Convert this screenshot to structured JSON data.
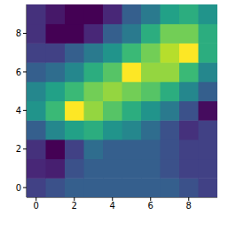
{
  "chart_data": {
    "type": "heatmap",
    "x": [
      0,
      1,
      2,
      3,
      4,
      5,
      6,
      7,
      8,
      9
    ],
    "y": [
      0,
      1,
      2,
      3,
      4,
      5,
      6,
      7,
      8,
      9
    ],
    "cells": [
      [
        0.2,
        0.25,
        0.3,
        0.3,
        0.3,
        0.3,
        0.3,
        0.3,
        0.25,
        0.2
      ],
      [
        0.12,
        0.1,
        0.25,
        0.3,
        0.3,
        0.3,
        0.3,
        0.25,
        0.2,
        0.2
      ],
      [
        0.15,
        0.02,
        0.2,
        0.35,
        0.3,
        0.3,
        0.3,
        0.25,
        0.2,
        0.2
      ],
      [
        0.3,
        0.45,
        0.55,
        0.6,
        0.5,
        0.45,
        0.35,
        0.25,
        0.15,
        0.2
      ],
      [
        0.5,
        0.65,
        0.95,
        0.8,
        0.7,
        0.6,
        0.5,
        0.4,
        0.25,
        0.05
      ],
      [
        0.45,
        0.55,
        0.65,
        0.75,
        0.8,
        0.75,
        0.7,
        0.6,
        0.45,
        0.3
      ],
      [
        0.3,
        0.35,
        0.45,
        0.6,
        0.7,
        0.95,
        0.8,
        0.8,
        0.65,
        0.45
      ],
      [
        0.2,
        0.2,
        0.3,
        0.4,
        0.5,
        0.65,
        0.75,
        0.85,
        0.95,
        0.6
      ],
      [
        0.15,
        0.02,
        0.02,
        0.12,
        0.3,
        0.4,
        0.6,
        0.75,
        0.75,
        0.6
      ],
      [
        0.15,
        0.08,
        0.02,
        0.02,
        0.12,
        0.3,
        0.4,
        0.55,
        0.6,
        0.5
      ]
    ],
    "xlim": [
      -0.5,
      9.5
    ],
    "ylim": [
      -0.5,
      9.5
    ],
    "xticks": [
      0,
      2,
      4,
      6,
      8
    ],
    "yticks": [
      0,
      2,
      4,
      6,
      8
    ]
  }
}
